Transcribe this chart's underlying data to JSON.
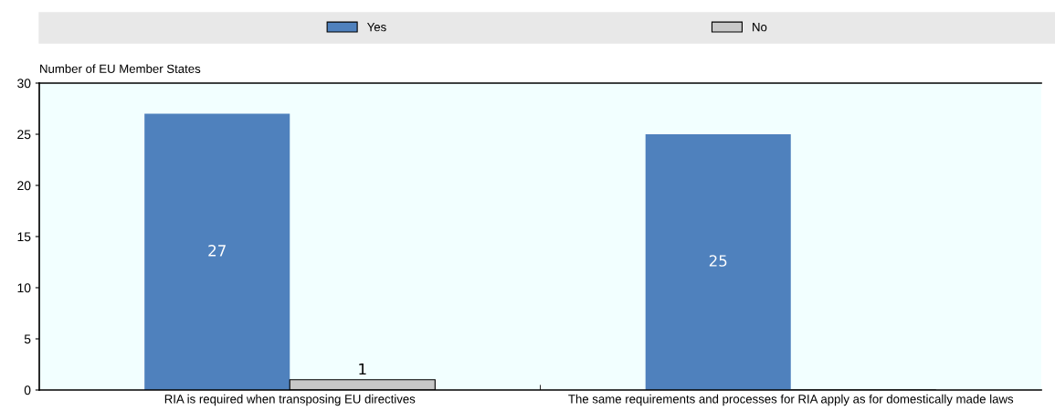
{
  "chart_data": {
    "type": "bar",
    "ylabel": "Number of EU Member States",
    "categories": [
      "RIA is required when transposing EU directives",
      "The same requirements and processes for RIA apply as for domestically made laws"
    ],
    "series": [
      {
        "name": "Yes",
        "color": "#4f81bd",
        "values": [
          27,
          25
        ],
        "value_labels": [
          "27",
          "25"
        ]
      },
      {
        "name": "No",
        "color": "#c8c8c8",
        "values": [
          1,
          null
        ],
        "value_labels": [
          "1",
          null
        ]
      }
    ],
    "ylim": [
      0,
      30
    ],
    "yticks": [
      0,
      5,
      10,
      15,
      20,
      25,
      30
    ],
    "grid": false,
    "legend": "top"
  }
}
